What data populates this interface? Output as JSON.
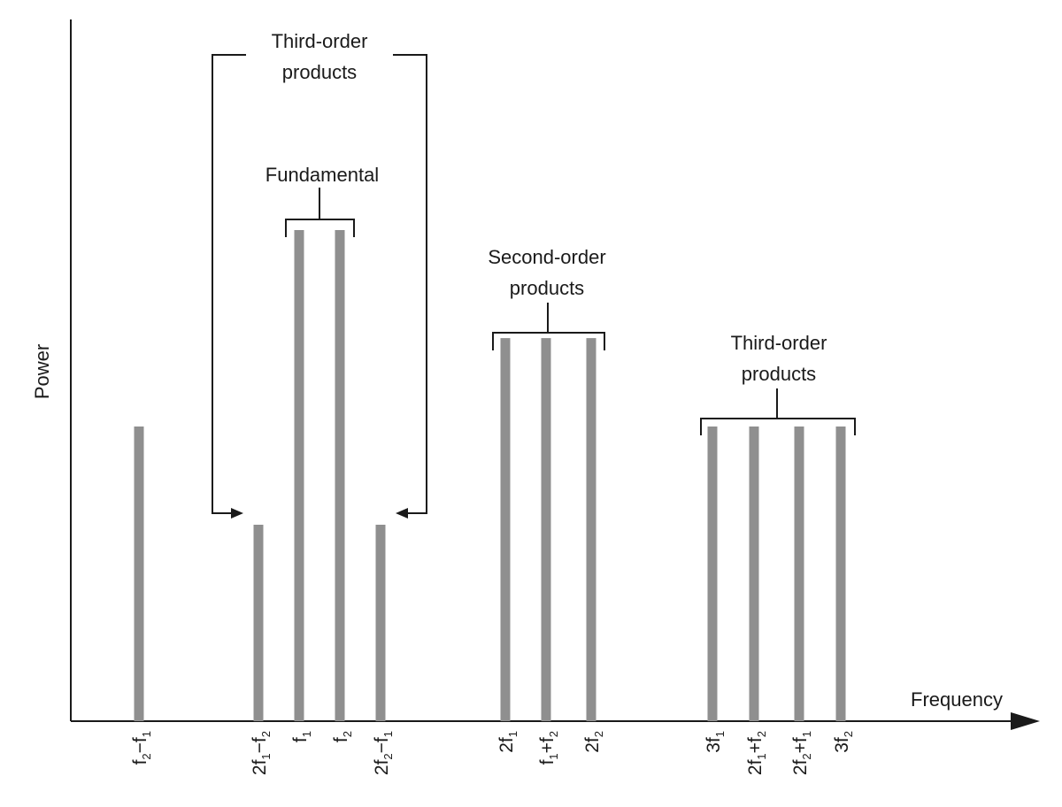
{
  "axes": {
    "y_label": "Power",
    "x_label": "Frequency"
  },
  "groups": {
    "third_order_low": [
      "Third-order",
      "products"
    ],
    "fundamental": [
      "Fundamental"
    ],
    "second_order": [
      "Second-order",
      "products"
    ],
    "third_order_high": [
      "Third-order",
      "products"
    ]
  },
  "colors": {
    "bar": "#8f8f8f",
    "line": "#1a1a1a",
    "background": "#ffffff"
  },
  "chart_data": {
    "type": "bar",
    "title": "",
    "xlabel": "Frequency",
    "ylabel": "Power",
    "grid": false,
    "categories": [
      "f2−f1",
      "2f1−f2",
      "f1",
      "f2",
      "2f2−f1",
      "2f1",
      "f1+f2",
      "2f2",
      "3f1",
      "2f1+f2",
      "2f2+f1",
      "3f2"
    ],
    "values": [
      6,
      4,
      10,
      10,
      4,
      7.8,
      7.8,
      7.8,
      6,
      6,
      6,
      6
    ],
    "tick_labels": [
      [
        {
          "t": "f"
        },
        {
          "t": "2",
          "sub": true
        },
        {
          "t": "−f"
        },
        {
          "t": "1",
          "sub": true
        }
      ],
      [
        {
          "t": "2f"
        },
        {
          "t": "1",
          "sub": true
        },
        {
          "t": "−f"
        },
        {
          "t": "2",
          "sub": true
        }
      ],
      [
        {
          "t": "f"
        },
        {
          "t": "1",
          "sub": true
        }
      ],
      [
        {
          "t": "f"
        },
        {
          "t": "2",
          "sub": true
        }
      ],
      [
        {
          "t": "2f"
        },
        {
          "t": "2",
          "sub": true
        },
        {
          "t": "−f"
        },
        {
          "t": "1",
          "sub": true
        }
      ],
      [
        {
          "t": "2f"
        },
        {
          "t": "1",
          "sub": true
        }
      ],
      [
        {
          "t": "f"
        },
        {
          "t": "1",
          "sub": true
        },
        {
          "t": "+f"
        },
        {
          "t": "2",
          "sub": true
        }
      ],
      [
        {
          "t": "2f"
        },
        {
          "t": "2",
          "sub": true
        }
      ],
      [
        {
          "t": "3f"
        },
        {
          "t": "1",
          "sub": true
        }
      ],
      [
        {
          "t": "2f"
        },
        {
          "t": "1",
          "sub": true
        },
        {
          "t": "+f"
        },
        {
          "t": "2",
          "sub": true
        }
      ],
      [
        {
          "t": "2f"
        },
        {
          "t": "2",
          "sub": true
        },
        {
          "t": "+f"
        },
        {
          "t": "1",
          "sub": true
        }
      ],
      [
        {
          "t": "3f"
        },
        {
          "t": "2",
          "sub": true
        }
      ]
    ]
  }
}
